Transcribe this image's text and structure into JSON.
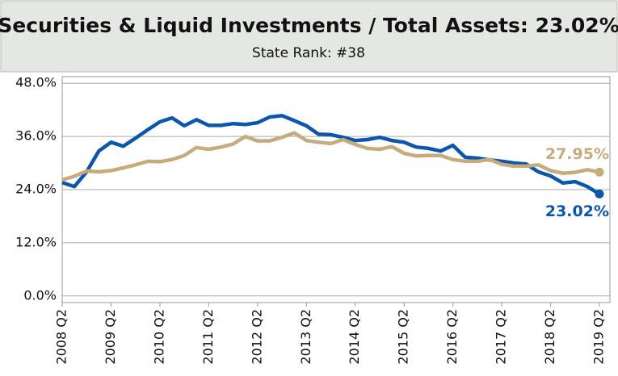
{
  "chart_data": {
    "type": "line",
    "title": "Securities & Liquid Investments / Total Assets: 23.02%",
    "subtitle": "State Rank: #38",
    "categories": [
      "2008 Q2",
      null,
      null,
      null,
      "2009 Q2",
      null,
      null,
      null,
      "2010 Q2",
      null,
      null,
      null,
      "2011 Q2",
      null,
      null,
      null,
      "2012 Q2",
      null,
      null,
      null,
      "2013 Q2",
      null,
      null,
      null,
      "2014 Q2",
      null,
      null,
      null,
      "2015 Q2",
      null,
      null,
      null,
      "2016 Q2",
      null,
      null,
      null,
      "2017 Q2",
      null,
      null,
      null,
      "2018 Q2",
      null,
      null,
      null,
      "2019 Q2"
    ],
    "series": [
      {
        "color": "#0b57ab",
        "values": [
          25.6,
          24.7,
          28,
          32.7,
          34.7,
          33.8,
          35.6,
          37.5,
          39.3,
          40.2,
          38.4,
          39.8,
          38.5,
          38.5,
          38.9,
          38.7,
          39.1,
          40.4,
          40.7,
          39.6,
          38.4,
          36.5,
          36.4,
          35.8,
          35.1,
          35.3,
          35.8,
          35.1,
          34.7,
          33.6,
          33.3,
          32.7,
          34,
          31.3,
          31.1,
          30.7,
          30.4,
          30,
          29.8,
          28,
          27.1,
          25.5,
          25.8,
          24.7,
          23.02
        ],
        "value_labels": [
          null,
          null,
          null,
          null,
          null,
          null,
          null,
          null,
          null,
          null,
          null,
          null,
          null,
          null,
          null,
          null,
          null,
          null,
          null,
          null,
          null,
          null,
          null,
          null,
          null,
          null,
          null,
          null,
          null,
          null,
          null,
          null,
          null,
          null,
          null,
          null,
          null,
          null,
          null,
          null,
          null,
          null,
          null,
          null,
          "23.02%"
        ]
      },
      {
        "color": "#c6ab7c",
        "values": [
          26.2,
          27,
          28.2,
          28,
          28.3,
          28.9,
          29.6,
          30.4,
          30.3,
          30.8,
          31.7,
          33.5,
          33.1,
          33.6,
          34.3,
          36,
          35,
          35,
          35.8,
          36.8,
          35.1,
          34.7,
          34.4,
          35.3,
          34.2,
          33.3,
          33.1,
          33.7,
          32.2,
          31.6,
          31.7,
          31.7,
          30.8,
          30.4,
          30.4,
          30.8,
          29.7,
          29.3,
          29.3,
          29.6,
          28.3,
          27.7,
          27.9,
          28.5,
          27.95
        ],
        "value_labels": [
          null,
          null,
          null,
          null,
          null,
          null,
          null,
          null,
          null,
          null,
          null,
          null,
          null,
          null,
          null,
          null,
          null,
          null,
          null,
          null,
          null,
          null,
          null,
          null,
          null,
          null,
          null,
          null,
          null,
          null,
          null,
          null,
          null,
          null,
          null,
          null,
          null,
          null,
          null,
          null,
          null,
          null,
          null,
          null,
          "27.95%"
        ]
      }
    ],
    "ylim": [
      -1.5,
      49.5
    ],
    "yticks": [
      {
        "value": 0,
        "label": "0.0%"
      },
      {
        "value": 12,
        "label": "12.0%"
      },
      {
        "value": 24,
        "label": "24.0%"
      },
      {
        "value": 36,
        "label": "36.0%"
      },
      {
        "value": 48,
        "label": "48.0%"
      }
    ],
    "grid": true
  }
}
